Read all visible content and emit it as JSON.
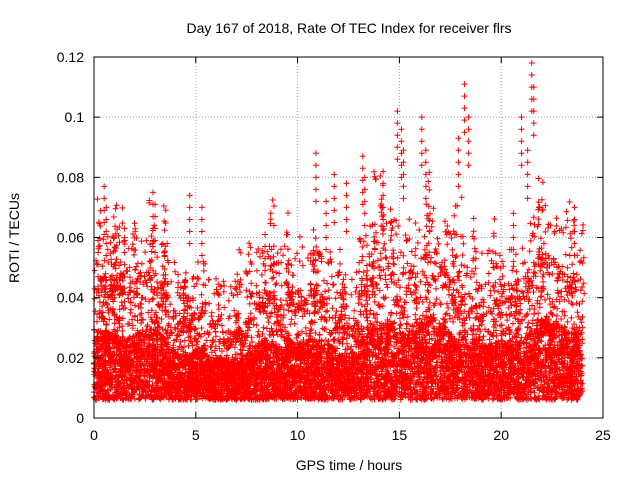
{
  "chart_data": {
    "type": "scatter",
    "title": "Day 167 of 2018, Rate Of TEC Index for receiver flrs",
    "xlabel": "GPS time / hours",
    "ylabel": "ROTI / TECUs",
    "xlim": [
      0,
      25
    ],
    "ylim": [
      0,
      0.12
    ],
    "x_ticks": [
      0,
      5,
      10,
      15,
      20,
      25
    ],
    "x_tick_labels": [
      "0",
      "5",
      "10",
      "15",
      "20",
      "25"
    ],
    "y_ticks": [
      0,
      0.02,
      0.04,
      0.06,
      0.08,
      0.1,
      0.12
    ],
    "y_tick_labels": [
      "0",
      "0.02",
      "0.04",
      "0.06",
      "0.08",
      "0.1",
      "0.12"
    ],
    "grid": true,
    "marker": "plus",
    "series": [
      {
        "name": "ROTI",
        "color": "#ff0000",
        "x_range": [
          0,
          24
        ],
        "typical_range": [
          0.005,
          0.045
        ],
        "x": [
          0.2,
          0.5,
          0.6,
          1.5,
          2.9,
          3.0,
          4.7,
          5.3,
          8.4,
          10.9,
          11.4,
          11.8,
          12.4,
          13.2,
          13.3,
          14.2,
          14.9,
          15.1,
          15.2,
          16.1,
          16.3,
          17.9,
          18.2,
          18.4,
          20.6,
          21.0,
          21.3,
          21.5,
          21.6,
          23.6
        ],
        "y": [
          0.059,
          0.077,
          0.07,
          0.063,
          0.075,
          0.071,
          0.074,
          0.07,
          0.061,
          0.088,
          0.072,
          0.081,
          0.078,
          0.087,
          0.08,
          0.082,
          0.102,
          0.096,
          0.089,
          0.1,
          0.089,
          0.093,
          0.111,
          0.1,
          0.068,
          0.1,
          0.089,
          0.118,
          0.11,
          0.07
        ]
      }
    ]
  }
}
